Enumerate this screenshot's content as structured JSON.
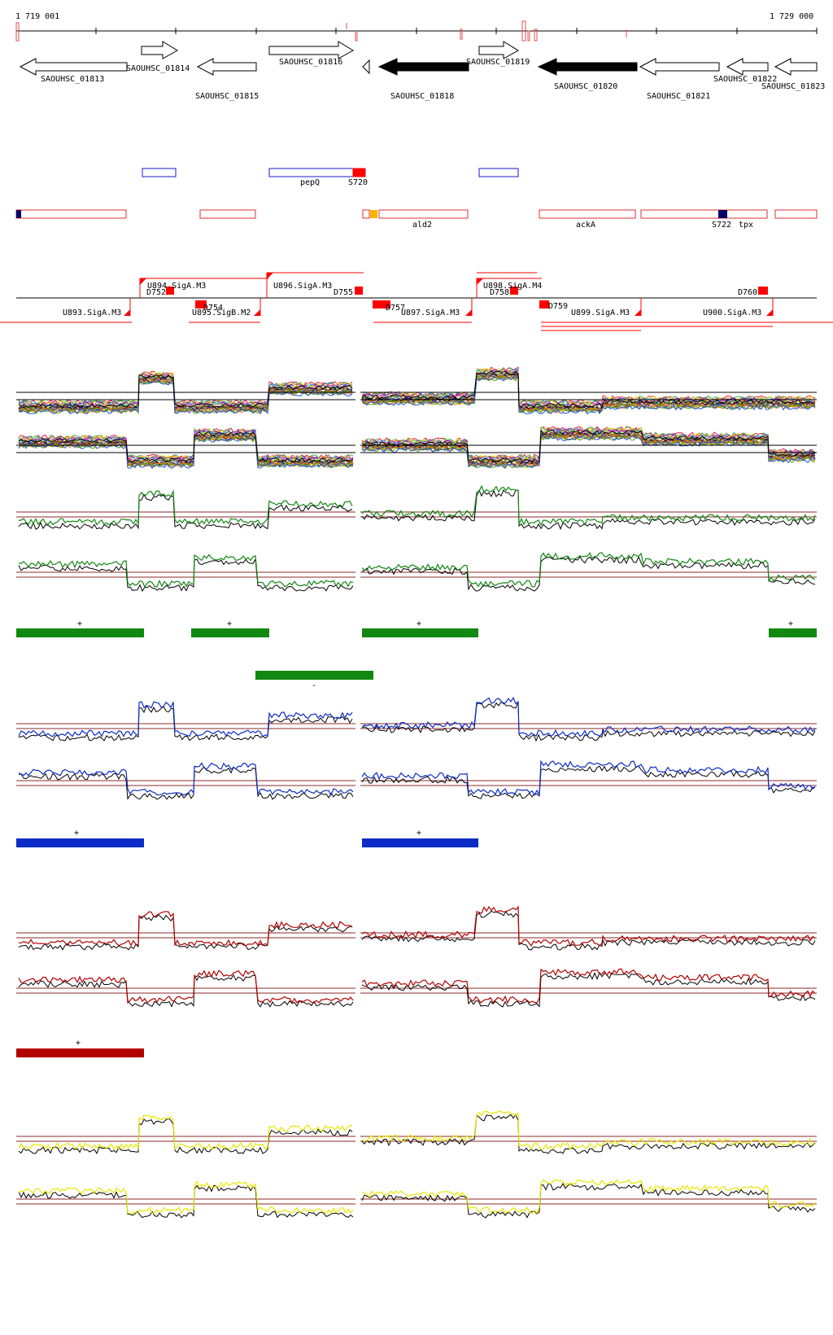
{
  "coords": {
    "start": "1 719 001",
    "end": "1 729 000"
  },
  "colors": {
    "red": "#ff0000",
    "blue": "#1a1acc",
    "green": "#118811",
    "dark_blue": "#0d2cc7",
    "dark_red": "#b30000",
    "yellow": "#e8e800",
    "orange": "#ffb000",
    "navy": "#000066",
    "brown_line": "#8b2a2a"
  },
  "genes": [
    {
      "label": "SAOUHSC_01813",
      "dir": "left",
      "filled": false
    },
    {
      "label": "SAOUHSC_01814",
      "dir": "right",
      "filled": false
    },
    {
      "label": "SAOUHSC_01815",
      "dir": "left",
      "filled": false
    },
    {
      "label": "SAOUHSC_01816",
      "dir": "right",
      "filled": false
    },
    {
      "label": "SAOUHSC_01818",
      "dir": "left",
      "filled": true
    },
    {
      "label": "SAOUHSC_01819",
      "dir": "right",
      "filled": false
    },
    {
      "label": "SAOUHSC_01820",
      "dir": "left",
      "filled": true
    },
    {
      "label": "SAOUHSC_01821",
      "dir": "left",
      "filled": false
    },
    {
      "label": "SAOUHSC_01822",
      "dir": "left",
      "filled": false
    },
    {
      "label": "SAOUHSC_01823",
      "dir": "left",
      "filled": false
    }
  ],
  "annotations": {
    "plus_strand": [
      {
        "label": "pepQ"
      },
      {
        "label": "S720"
      }
    ],
    "minus_strand": [
      {
        "label": "ald2"
      },
      {
        "label": "ackA"
      },
      {
        "label": "S722"
      },
      {
        "label": "tpx"
      }
    ]
  },
  "promoters_top": [
    {
      "label": "U894.SigA.M3"
    },
    {
      "label": "D752"
    },
    {
      "label": "U896.SigA.M3"
    },
    {
      "label": "D755"
    },
    {
      "label": "U898.SigA.M4"
    },
    {
      "label": "D758"
    },
    {
      "label": "D760"
    }
  ],
  "promoters_bottom": [
    {
      "label": "U893.SigA.M3"
    },
    {
      "label": "U895.SigB.M2"
    },
    {
      "label": "D754"
    },
    {
      "label": "D757"
    },
    {
      "label": "U897.SigA.M3"
    },
    {
      "label": "D759"
    },
    {
      "label": "U899.SigA.M3"
    },
    {
      "label": "U900.SigA.M3"
    }
  ],
  "segment_marks": {
    "green_plus": "+",
    "green_minus": "-",
    "blue_plus": "+",
    "red_plus": "+"
  },
  "tracks": [
    {
      "name": "conditions-plus",
      "color": "multi"
    },
    {
      "name": "conditions-minus",
      "color": "multi"
    },
    {
      "name": "green-plus",
      "color": "#118811"
    },
    {
      "name": "green-minus",
      "color": "#118811"
    },
    {
      "name": "blue-plus",
      "color": "#0d2cc7"
    },
    {
      "name": "blue-minus",
      "color": "#0d2cc7"
    },
    {
      "name": "red-plus",
      "color": "#b30000"
    },
    {
      "name": "red-minus",
      "color": "#b30000"
    },
    {
      "name": "yellow-plus",
      "color": "#e8e800"
    },
    {
      "name": "yellow-minus",
      "color": "#e8e800"
    }
  ]
}
